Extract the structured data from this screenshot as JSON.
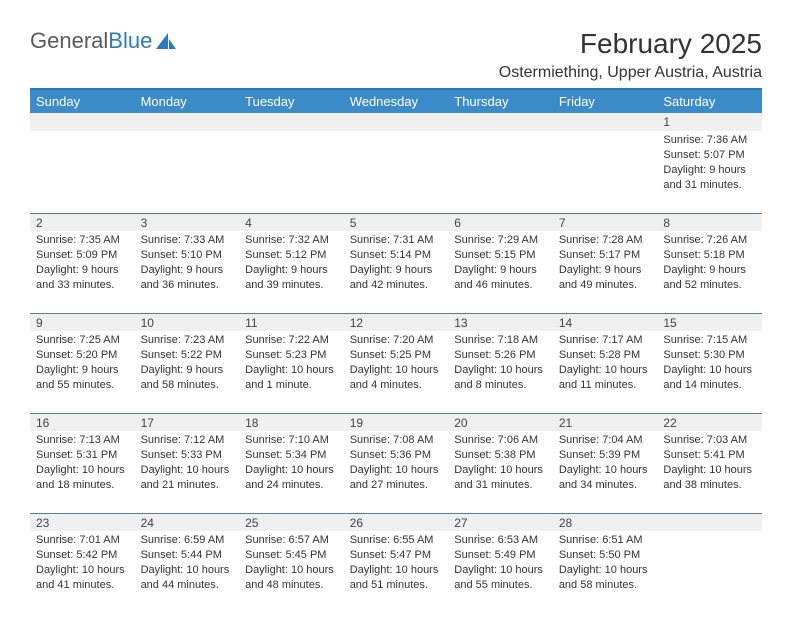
{
  "logo": {
    "text1": "General",
    "text2": "Blue"
  },
  "title": "February 2025",
  "location": "Ostermiething, Upper Austria, Austria",
  "colors": {
    "header_bar": "#3b8bc9",
    "header_text": "#ffffff",
    "daynum_bg": "#efefef",
    "rule": "#5a7a9a",
    "top_rule": "#2b7bbf",
    "logo_blue": "#2b7bbf",
    "text": "#333333"
  },
  "typography": {
    "title_fontsize": 28,
    "location_fontsize": 16,
    "header_fontsize": 13,
    "daynum_fontsize": 12,
    "cell_fontsize": 11
  },
  "dayHeaders": [
    "Sunday",
    "Monday",
    "Tuesday",
    "Wednesday",
    "Thursday",
    "Friday",
    "Saturday"
  ],
  "weeks": [
    [
      null,
      null,
      null,
      null,
      null,
      null,
      {
        "n": "1",
        "sr": "Sunrise: 7:36 AM",
        "ss": "Sunset: 5:07 PM",
        "d1": "Daylight: 9 hours",
        "d2": "and 31 minutes."
      }
    ],
    [
      {
        "n": "2",
        "sr": "Sunrise: 7:35 AM",
        "ss": "Sunset: 5:09 PM",
        "d1": "Daylight: 9 hours",
        "d2": "and 33 minutes."
      },
      {
        "n": "3",
        "sr": "Sunrise: 7:33 AM",
        "ss": "Sunset: 5:10 PM",
        "d1": "Daylight: 9 hours",
        "d2": "and 36 minutes."
      },
      {
        "n": "4",
        "sr": "Sunrise: 7:32 AM",
        "ss": "Sunset: 5:12 PM",
        "d1": "Daylight: 9 hours",
        "d2": "and 39 minutes."
      },
      {
        "n": "5",
        "sr": "Sunrise: 7:31 AM",
        "ss": "Sunset: 5:14 PM",
        "d1": "Daylight: 9 hours",
        "d2": "and 42 minutes."
      },
      {
        "n": "6",
        "sr": "Sunrise: 7:29 AM",
        "ss": "Sunset: 5:15 PM",
        "d1": "Daylight: 9 hours",
        "d2": "and 46 minutes."
      },
      {
        "n": "7",
        "sr": "Sunrise: 7:28 AM",
        "ss": "Sunset: 5:17 PM",
        "d1": "Daylight: 9 hours",
        "d2": "and 49 minutes."
      },
      {
        "n": "8",
        "sr": "Sunrise: 7:26 AM",
        "ss": "Sunset: 5:18 PM",
        "d1": "Daylight: 9 hours",
        "d2": "and 52 minutes."
      }
    ],
    [
      {
        "n": "9",
        "sr": "Sunrise: 7:25 AM",
        "ss": "Sunset: 5:20 PM",
        "d1": "Daylight: 9 hours",
        "d2": "and 55 minutes."
      },
      {
        "n": "10",
        "sr": "Sunrise: 7:23 AM",
        "ss": "Sunset: 5:22 PM",
        "d1": "Daylight: 9 hours",
        "d2": "and 58 minutes."
      },
      {
        "n": "11",
        "sr": "Sunrise: 7:22 AM",
        "ss": "Sunset: 5:23 PM",
        "d1": "Daylight: 10 hours",
        "d2": "and 1 minute."
      },
      {
        "n": "12",
        "sr": "Sunrise: 7:20 AM",
        "ss": "Sunset: 5:25 PM",
        "d1": "Daylight: 10 hours",
        "d2": "and 4 minutes."
      },
      {
        "n": "13",
        "sr": "Sunrise: 7:18 AM",
        "ss": "Sunset: 5:26 PM",
        "d1": "Daylight: 10 hours",
        "d2": "and 8 minutes."
      },
      {
        "n": "14",
        "sr": "Sunrise: 7:17 AM",
        "ss": "Sunset: 5:28 PM",
        "d1": "Daylight: 10 hours",
        "d2": "and 11 minutes."
      },
      {
        "n": "15",
        "sr": "Sunrise: 7:15 AM",
        "ss": "Sunset: 5:30 PM",
        "d1": "Daylight: 10 hours",
        "d2": "and 14 minutes."
      }
    ],
    [
      {
        "n": "16",
        "sr": "Sunrise: 7:13 AM",
        "ss": "Sunset: 5:31 PM",
        "d1": "Daylight: 10 hours",
        "d2": "and 18 minutes."
      },
      {
        "n": "17",
        "sr": "Sunrise: 7:12 AM",
        "ss": "Sunset: 5:33 PM",
        "d1": "Daylight: 10 hours",
        "d2": "and 21 minutes."
      },
      {
        "n": "18",
        "sr": "Sunrise: 7:10 AM",
        "ss": "Sunset: 5:34 PM",
        "d1": "Daylight: 10 hours",
        "d2": "and 24 minutes."
      },
      {
        "n": "19",
        "sr": "Sunrise: 7:08 AM",
        "ss": "Sunset: 5:36 PM",
        "d1": "Daylight: 10 hours",
        "d2": "and 27 minutes."
      },
      {
        "n": "20",
        "sr": "Sunrise: 7:06 AM",
        "ss": "Sunset: 5:38 PM",
        "d1": "Daylight: 10 hours",
        "d2": "and 31 minutes."
      },
      {
        "n": "21",
        "sr": "Sunrise: 7:04 AM",
        "ss": "Sunset: 5:39 PM",
        "d1": "Daylight: 10 hours",
        "d2": "and 34 minutes."
      },
      {
        "n": "22",
        "sr": "Sunrise: 7:03 AM",
        "ss": "Sunset: 5:41 PM",
        "d1": "Daylight: 10 hours",
        "d2": "and 38 minutes."
      }
    ],
    [
      {
        "n": "23",
        "sr": "Sunrise: 7:01 AM",
        "ss": "Sunset: 5:42 PM",
        "d1": "Daylight: 10 hours",
        "d2": "and 41 minutes."
      },
      {
        "n": "24",
        "sr": "Sunrise: 6:59 AM",
        "ss": "Sunset: 5:44 PM",
        "d1": "Daylight: 10 hours",
        "d2": "and 44 minutes."
      },
      {
        "n": "25",
        "sr": "Sunrise: 6:57 AM",
        "ss": "Sunset: 5:45 PM",
        "d1": "Daylight: 10 hours",
        "d2": "and 48 minutes."
      },
      {
        "n": "26",
        "sr": "Sunrise: 6:55 AM",
        "ss": "Sunset: 5:47 PM",
        "d1": "Daylight: 10 hours",
        "d2": "and 51 minutes."
      },
      {
        "n": "27",
        "sr": "Sunrise: 6:53 AM",
        "ss": "Sunset: 5:49 PM",
        "d1": "Daylight: 10 hours",
        "d2": "and 55 minutes."
      },
      {
        "n": "28",
        "sr": "Sunrise: 6:51 AM",
        "ss": "Sunset: 5:50 PM",
        "d1": "Daylight: 10 hours",
        "d2": "and 58 minutes."
      },
      null
    ]
  ]
}
